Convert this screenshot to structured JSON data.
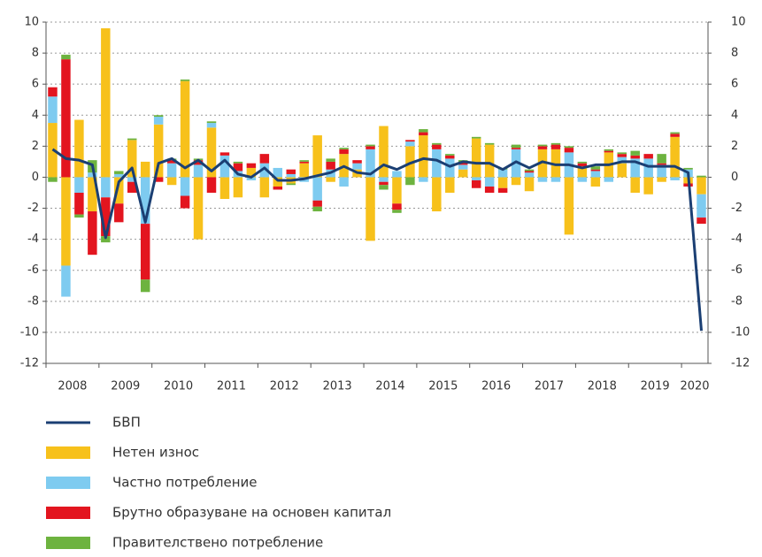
{
  "chart_data": {
    "type": "bar",
    "stacked": true,
    "categories": [
      "2008",
      null,
      null,
      null,
      "2009",
      null,
      null,
      null,
      "2010",
      null,
      null,
      null,
      "2011",
      null,
      null,
      null,
      "2012",
      null,
      null,
      null,
      "2013",
      null,
      null,
      null,
      "2014",
      null,
      null,
      null,
      "2015",
      null,
      null,
      null,
      "2016",
      null,
      null,
      null,
      "2017",
      null,
      null,
      null,
      "2018",
      null,
      null,
      null,
      "2019",
      null,
      null,
      null,
      "2020",
      null
    ],
    "ylim": [
      -12,
      10
    ],
    "yticks": [
      10,
      8,
      6,
      4,
      2,
      0,
      -2,
      -4,
      -6,
      -8,
      -10,
      -12
    ],
    "grid": true,
    "series": [
      {
        "name": "БВП",
        "type": "line",
        "color": "#1b3f73",
        "values": [
          1.8,
          1.2,
          1.1,
          0.8,
          -3.9,
          -0.3,
          0.6,
          -2.9,
          0.9,
          1.2,
          0.6,
          1.1,
          0.4,
          1.1,
          0.2,
          0.0,
          0.6,
          -0.2,
          -0.2,
          -0.1,
          0.1,
          0.3,
          0.7,
          0.3,
          0.2,
          0.8,
          0.5,
          0.9,
          1.2,
          1.1,
          0.7,
          1.0,
          0.9,
          0.9,
          0.5,
          1.0,
          0.6,
          1.0,
          0.8,
          0.8,
          0.6,
          0.8,
          0.8,
          1.0,
          1.0,
          0.7,
          0.7,
          0.7,
          0.3,
          -9.9
        ]
      },
      {
        "name": "Нетен износ",
        "type": "bar",
        "color": "#f7c11b",
        "values": [
          3.5,
          -5.7,
          3.7,
          -2.2,
          9.6,
          -1.7,
          2.4,
          1.0,
          3.4,
          -0.5,
          6.2,
          -4.0,
          3.2,
          -1.4,
          -1.3,
          0.6,
          -1.3,
          -0.6,
          -0.4,
          0.9,
          2.7,
          -0.3,
          1.5,
          0.5,
          -4.1,
          3.3,
          -1.7,
          2.0,
          2.7,
          -2.2,
          -1.0,
          0.5,
          2.5,
          2.1,
          -0.7,
          -0.5,
          -0.9,
          1.8,
          1.8,
          -3.7,
          0.7,
          -0.6,
          1.6,
          0.9,
          -1.0,
          -1.1,
          -0.3,
          2.6,
          -0.4,
          -1.1
        ]
      },
      {
        "name": "Частно потребление",
        "type": "bar",
        "color": "#7ecbf0",
        "values": [
          1.7,
          -2.0,
          -1.0,
          0.3,
          -1.3,
          0.2,
          -0.3,
          -3.0,
          0.5,
          0.9,
          -1.2,
          0.8,
          0.3,
          1.4,
          0.4,
          -0.2,
          0.9,
          0.6,
          0.2,
          -0.3,
          -1.5,
          0.5,
          -0.6,
          0.4,
          1.8,
          -0.3,
          0.4,
          0.3,
          -0.3,
          1.8,
          1.2,
          0.3,
          -0.2,
          -0.6,
          0.5,
          1.8,
          0.3,
          -0.3,
          -0.3,
          1.6,
          -0.3,
          0.4,
          -0.3,
          0.4,
          1.2,
          1.2,
          0.8,
          -0.2,
          0.5,
          -1.5
        ]
      },
      {
        "name": "Брутно образуване на основен капитал",
        "type": "bar",
        "color": "#e3151f",
        "values": [
          0.6,
          7.6,
          -1.4,
          -2.8,
          -2.5,
          -1.2,
          -0.7,
          -3.6,
          -0.3,
          0.2,
          -0.8,
          0.3,
          -1.0,
          0.2,
          0.5,
          0.3,
          0.6,
          -0.2,
          0.3,
          0.1,
          -0.4,
          0.5,
          0.3,
          0.2,
          0.2,
          -0.2,
          -0.4,
          0.1,
          0.2,
          0.3,
          0.2,
          0.2,
          -0.5,
          -0.4,
          -0.3,
          0.1,
          0.1,
          0.2,
          0.3,
          0.3,
          0.2,
          0.1,
          0.1,
          0.2,
          0.2,
          0.3,
          0.1,
          0.2,
          -0.2,
          -0.4
        ]
      },
      {
        "name": "Правителствено потребление",
        "type": "bar",
        "color": "#6db33f",
        "values": [
          -0.3,
          0.3,
          -0.2,
          0.8,
          -0.4,
          0.2,
          0.1,
          -0.8,
          0.1,
          0.1,
          0.1,
          0.1,
          0.1,
          0.0,
          0.1,
          0.0,
          0.0,
          0.0,
          -0.1,
          0.1,
          -0.3,
          0.2,
          0.1,
          0.0,
          0.1,
          -0.3,
          -0.2,
          -0.5,
          0.2,
          0.1,
          0.1,
          0.1,
          0.1,
          0.1,
          0.1,
          0.2,
          0.1,
          0.1,
          0.1,
          0.1,
          0.1,
          0.2,
          0.1,
          0.1,
          0.3,
          0.0,
          0.6,
          0.1,
          0.1,
          0.1
        ]
      }
    ]
  }
}
